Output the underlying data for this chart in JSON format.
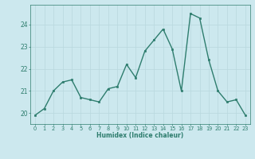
{
  "x": [
    0,
    1,
    2,
    3,
    4,
    5,
    6,
    7,
    8,
    9,
    10,
    11,
    12,
    13,
    14,
    15,
    16,
    17,
    18,
    19,
    20,
    21,
    22,
    23
  ],
  "y": [
    19.9,
    20.2,
    21.0,
    21.4,
    21.5,
    20.7,
    20.6,
    20.5,
    21.1,
    21.2,
    22.2,
    21.6,
    22.8,
    23.3,
    23.8,
    22.9,
    21.0,
    24.5,
    24.3,
    22.4,
    21.0,
    20.5,
    20.6,
    19.9
  ],
  "xlabel": "Humidex (Indice chaleur)",
  "ylim": [
    19.5,
    24.9
  ],
  "xlim": [
    -0.5,
    23.5
  ],
  "yticks": [
    20,
    21,
    22,
    23,
    24
  ],
  "xtick_labels": [
    "0",
    "1",
    "2",
    "3",
    "4",
    "5",
    "6",
    "7",
    "8",
    "9",
    "10",
    "11",
    "12",
    "13",
    "14",
    "15",
    "16",
    "17",
    "18",
    "19",
    "20",
    "21",
    "22",
    "23"
  ],
  "line_color": "#2e7d6e",
  "marker_color": "#2e7d6e",
  "bg_color": "#cce8ee",
  "grid_color": "#b8d8de",
  "plot_bg": "#cce8ee",
  "tick_color": "#2e7d6e",
  "label_color": "#2e7d6e"
}
